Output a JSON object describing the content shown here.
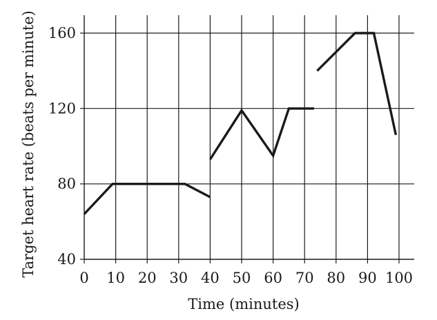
{
  "chart_data": {
    "type": "line",
    "title": "",
    "xlabel": "Time (minutes)",
    "ylabel": "Target heart rate (beats per minute)",
    "xlim": [
      0,
      100
    ],
    "ylim": [
      40,
      170
    ],
    "xticks": [
      0,
      10,
      20,
      30,
      40,
      50,
      60,
      70,
      80,
      90,
      100
    ],
    "yticks": [
      40,
      80,
      120,
      160
    ],
    "xtick_labels": [
      "0",
      "10",
      "20",
      "30",
      "40",
      "50",
      "60",
      "70",
      "80",
      "90",
      "100"
    ],
    "ytick_labels": [
      "40",
      "80",
      "120",
      "160"
    ],
    "grid": true,
    "line_color": "#1a1a1a",
    "segments": [
      {
        "points": [
          [
            0,
            64
          ],
          [
            9,
            80
          ],
          [
            32,
            80
          ],
          [
            40,
            73
          ]
        ]
      },
      {
        "points": [
          [
            40,
            93
          ],
          [
            50,
            119
          ],
          [
            60,
            95
          ],
          [
            65,
            120
          ],
          [
            73,
            120
          ]
        ]
      },
      {
        "points": [
          [
            74,
            140
          ],
          [
            86,
            160
          ],
          [
            92,
            160
          ],
          [
            99,
            106
          ]
        ]
      }
    ]
  }
}
